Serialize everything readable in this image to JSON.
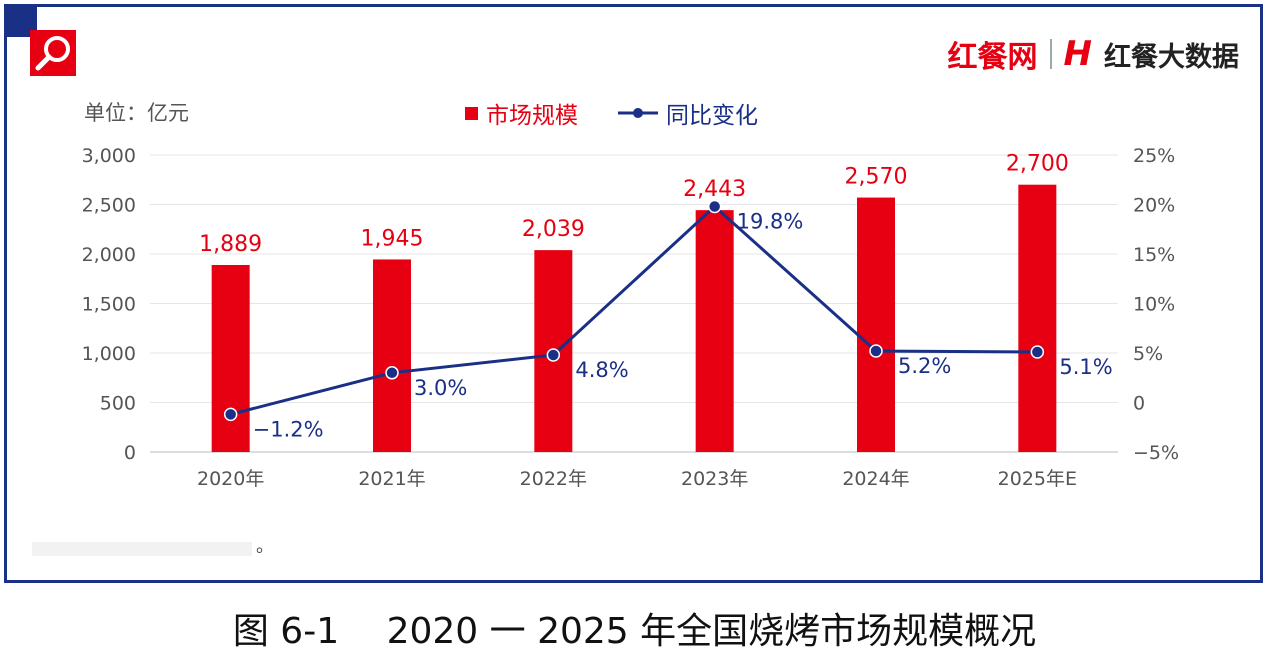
{
  "brand": {
    "name": "红餐网",
    "data_name": "红餐大数据",
    "colors": {
      "brand_red": "#e60012",
      "navy": "#1a2f86"
    }
  },
  "unit_label": "单位：亿元",
  "footnote": "。",
  "caption": {
    "figure": "图 6-1",
    "title": "2020 一 2025 年全国烧烤市场规模概况"
  },
  "chart_data": {
    "type": "bar",
    "categories": [
      "2020年",
      "2021年",
      "2022年",
      "2023年",
      "2024年",
      "2025年E"
    ],
    "series": [
      {
        "name": "市场规模",
        "type": "bar",
        "axis": "left",
        "color": "#e60012",
        "values": [
          1889,
          1945,
          2039,
          2443,
          2570,
          2700
        ],
        "labels": [
          "1,889",
          "1,945",
          "2,039",
          "2,443",
          "2,570",
          "2,700"
        ]
      },
      {
        "name": "同比变化",
        "type": "line",
        "axis": "right",
        "color": "#1a2f86",
        "values": [
          -1.2,
          3.0,
          4.8,
          19.8,
          5.2,
          5.1
        ],
        "labels": [
          "−1.2%",
          "3.0%",
          "4.8%",
          "19.8%",
          "5.2%",
          "5.1%"
        ]
      }
    ],
    "y_left": {
      "min": 0,
      "max": 3000,
      "ticks": [
        0,
        500,
        1000,
        1500,
        2000,
        2500,
        3000
      ],
      "tick_labels": [
        "0",
        "500",
        "1,000",
        "1,500",
        "2,000",
        "2,500",
        "3,000"
      ]
    },
    "y_right": {
      "min": -5,
      "max": 25,
      "ticks": [
        -5,
        0,
        5,
        10,
        15,
        20,
        25
      ],
      "tick_labels": [
        "−5%",
        "0",
        "5%",
        "10%",
        "15%",
        "20%",
        "25%"
      ]
    },
    "grid": true,
    "legend": "top-center"
  }
}
